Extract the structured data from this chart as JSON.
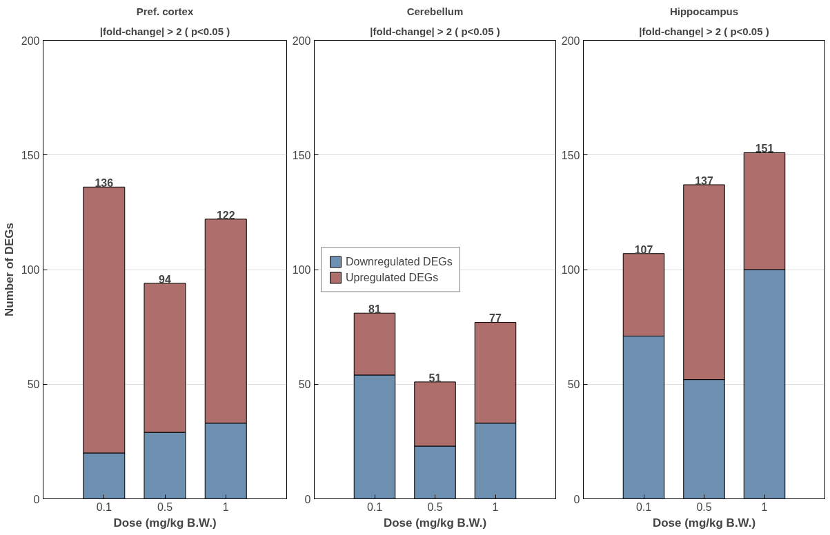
{
  "chart_data": [
    {
      "type": "bar",
      "title": "Pref. cortex",
      "subtitle": "|fold-change| > 2 ( p<0.05 )",
      "xlabel": "Dose (mg/kg B.W.)",
      "ylabel": "Number of DEGs",
      "categories": [
        "0.1",
        "0.5",
        "1"
      ],
      "stacked": true,
      "ylim": [
        0,
        200
      ],
      "yticks": [
        0,
        50,
        100,
        150,
        200
      ],
      "grid": "y",
      "legend": false,
      "series": [
        {
          "color": "#6e90b0",
          "values": [
            20,
            29,
            33
          ]
        },
        {
          "color": "#ae6e6c",
          "values": [
            116,
            65,
            89
          ]
        }
      ],
      "totals": [
        "136",
        "94",
        "122"
      ]
    },
    {
      "type": "bar",
      "title": "Cerebellum",
      "subtitle": "|fold-change| > 2 ( p<0.05 )",
      "xlabel": "Dose (mg/kg B.W.)",
      "categories": [
        "0.1",
        "0.5",
        "1"
      ],
      "stacked": true,
      "ylim": [
        0,
        200
      ],
      "yticks": [
        0,
        50,
        100,
        150,
        200
      ],
      "grid": "y",
      "legend": "left",
      "series": [
        {
          "name": "Downregulated DEGs",
          "color": "#6e90b0",
          "values": [
            54,
            23,
            33
          ]
        },
        {
          "name": "Upregulated DEGs",
          "color": "#ae6e6c",
          "values": [
            27,
            28,
            44
          ]
        }
      ],
      "totals": [
        "81",
        "51",
        "77"
      ]
    },
    {
      "type": "bar",
      "title": "Hippocampus",
      "subtitle": "|fold-change| > 2 ( p<0.05 )",
      "xlabel": "Dose (mg/kg B.W.)",
      "categories": [
        "0.1",
        "0.5",
        "1"
      ],
      "stacked": true,
      "ylim": [
        0,
        200
      ],
      "yticks": [
        0,
        50,
        100,
        150,
        200
      ],
      "grid": "y",
      "legend": false,
      "series": [
        {
          "color": "#6e90b0",
          "values": [
            71,
            52,
            100
          ]
        },
        {
          "color": "#ae6e6c",
          "values": [
            36,
            85,
            51
          ]
        }
      ],
      "totals": [
        "107",
        "137",
        "151"
      ]
    }
  ]
}
